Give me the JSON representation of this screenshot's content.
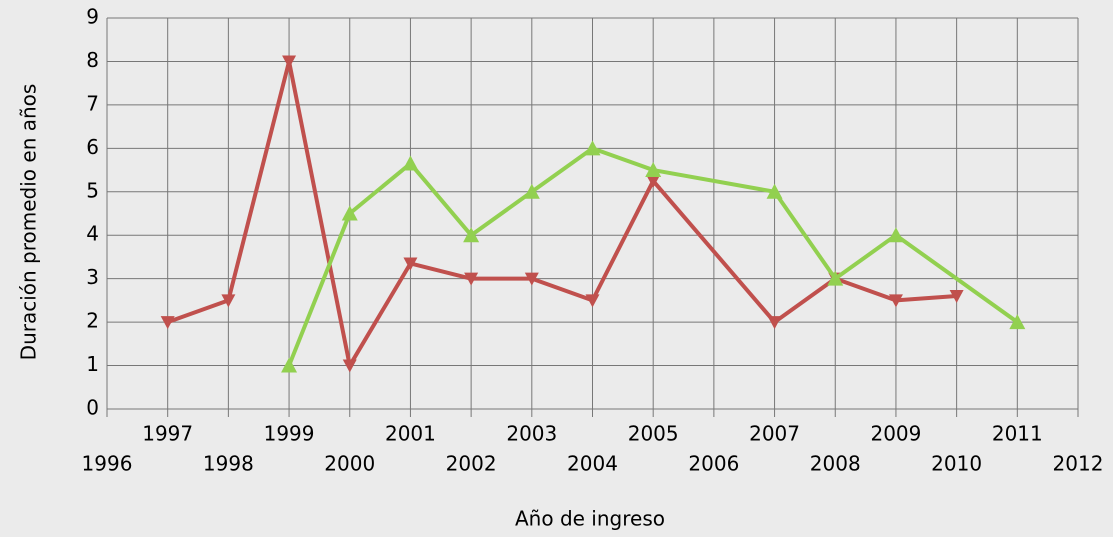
{
  "chart_data": {
    "type": "line",
    "x_label": "Año de ingreso",
    "y_label": "Duración promedio en años",
    "series": [
      {
        "color": "#c0504d",
        "marker": "triangle-down",
        "x": [
          1997,
          1998,
          1999,
          2000,
          2001,
          2002,
          2003,
          2004,
          2005,
          2007,
          2008,
          2009,
          2010
        ],
        "values": [
          2,
          2.5,
          8,
          1,
          3.35,
          3,
          3,
          2.5,
          5.25,
          2,
          3,
          2.5,
          2.6
        ]
      },
      {
        "color": "#92d050",
        "marker": "triangle-up",
        "x": [
          1999,
          2000,
          2001,
          2002,
          2003,
          2004,
          2005,
          2007,
          2008,
          2009,
          2011
        ],
        "values": [
          1,
          4.5,
          5.65,
          4,
          5,
          6,
          5.5,
          5,
          3,
          4,
          2
        ]
      }
    ],
    "xlim": [
      1996,
      2012
    ],
    "xticks": [
      1996,
      1997,
      1998,
      1999,
      2000,
      2001,
      2002,
      2003,
      2004,
      2005,
      2006,
      2007,
      2008,
      2009,
      2010,
      2011,
      2012
    ],
    "ylim": [
      0,
      9
    ],
    "yticks": [
      0,
      1,
      2,
      3,
      4,
      5,
      6,
      7,
      8,
      9
    ],
    "grid": true
  }
}
